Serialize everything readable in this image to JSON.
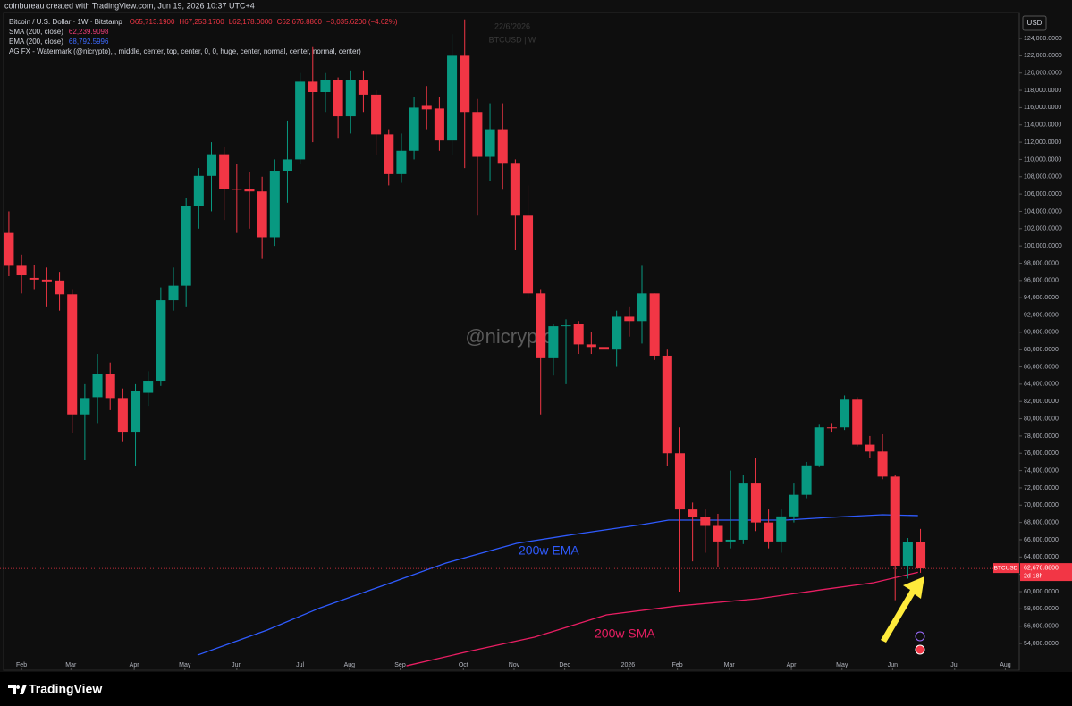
{
  "chart_data": {
    "type": "candlestick",
    "credit": "coinbureau created with TradingView.com, Jun 19, 2026 10:37 UTC+4",
    "symbol_title": "Bitcoin / U.S. Dollar · 1W · Bitstamp",
    "ohlc_header": [
      "O65,713.1900",
      "H67,253.1700",
      "L62,178.0000",
      "C62,676.8800",
      "−3,035.6200 (−4.62%)"
    ],
    "indicators": [
      {
        "name": "SMA (200, close)",
        "value": "62,239.9098",
        "color": "#f23f7a"
      },
      {
        "name": "EMA (200, close)",
        "value": "68,792.5996",
        "color": "#3d6bff"
      },
      {
        "name": "AG FX - Watermark (@nicrypto), , middle, center, top, center, 0, 0, huge, center, normal, center, normal, center)",
        "value": null,
        "color": "#d1d4dc"
      }
    ],
    "watermark": "@nicrypto",
    "top_watermark": [
      "22/6/2026",
      "BTCUSD | W"
    ],
    "currency": "USD",
    "price_label": {
      "symbol": "BTCUSD",
      "price": "62,676.8800",
      "countdown": "2d 18h"
    },
    "brand": "TradingView",
    "up_color": "#089981",
    "down_color": "#f23645",
    "open": [
      101500,
      97700,
      96300,
      96100,
      96000,
      94400,
      80500,
      82500,
      85200,
      82400,
      78500,
      83000,
      84400,
      93700,
      95400,
      104600,
      108100,
      110600,
      106600,
      106600,
      106300,
      101000,
      108700,
      110000,
      119000,
      117800,
      119200,
      115000,
      119200,
      117500,
      112900,
      108300,
      111000,
      116200,
      115900,
      112200,
      122000,
      115500,
      110300,
      113500,
      109600,
      103500,
      94500,
      87000,
      90700,
      91000,
      88600,
      88300,
      88000,
      91800,
      91300,
      94500,
      87300,
      76000,
      69500,
      68600,
      67600,
      65800,
      66000,
      72500,
      68000,
      65800,
      68700,
      71200,
      74600,
      79000,
      79000,
      82200,
      77000,
      76200,
      73300,
      63000,
      65713.19
    ],
    "high": [
      104000,
      99000,
      97800,
      97500,
      97000,
      95000,
      84000,
      87500,
      86500,
      83500,
      84000,
      85500,
      95200,
      97500,
      105500,
      109000,
      112000,
      111500,
      109500,
      108500,
      108000,
      110000,
      114500,
      120000,
      123000,
      120000,
      119500,
      120300,
      120300,
      118000,
      113500,
      113000,
      117200,
      118500,
      117200,
      124500,
      126200,
      117000,
      116500,
      116500,
      110000,
      107000,
      95000,
      91000,
      91500,
      91300,
      90000,
      89000,
      92500,
      93000,
      97700,
      94500,
      88000,
      79000,
      70300,
      69500,
      69000,
      74000,
      73500,
      75500,
      69500,
      69500,
      72500,
      75000,
      79300,
      79500,
      82700,
      82500,
      78000,
      78200,
      73500,
      66200,
      67253.17
    ],
    "low": [
      96500,
      94500,
      95000,
      93000,
      92500,
      78300,
      75200,
      79500,
      81000,
      77300,
      74500,
      81500,
      83800,
      92500,
      93000,
      102000,
      104000,
      103000,
      101500,
      102000,
      98500,
      100000,
      105000,
      109500,
      112000,
      115500,
      112500,
      113000,
      115500,
      110500,
      107000,
      107300,
      110000,
      113500,
      111000,
      110500,
      109000,
      103500,
      107500,
      106500,
      99500,
      94000,
      80500,
      85000,
      84000,
      87500,
      87500,
      86000,
      86000,
      89500,
      88700,
      86800,
      74500,
      60000,
      63500,
      64500,
      62800,
      65000,
      65500,
      67000,
      65000,
      64500,
      68000,
      70800,
      74400,
      78500,
      78700,
      76800,
      75500,
      73000,
      59000,
      61500,
      62178
    ],
    "close": [
      97700,
      96600,
      96100,
      95900,
      94400,
      80500,
      82400,
      85200,
      82400,
      78500,
      83200,
      84400,
      93700,
      95400,
      104600,
      108100,
      110600,
      106600,
      106500,
      106300,
      101000,
      108700,
      110000,
      119000,
      117800,
      119200,
      115000,
      119200,
      117500,
      112900,
      108300,
      111000,
      116000,
      115800,
      112200,
      122000,
      115500,
      110300,
      113500,
      109600,
      103500,
      94500,
      87000,
      90700,
      90800,
      88600,
      88300,
      88000,
      91800,
      91300,
      94500,
      87300,
      76000,
      69500,
      68600,
      67600,
      65800,
      66000,
      72500,
      68000,
      65800,
      68700,
      71200,
      74600,
      79000,
      78900,
      82200,
      77000,
      76200,
      73300,
      63000,
      65700,
      62676.88
    ],
    "lines": [
      {
        "name": "200w EMA",
        "color": "#2f5bff",
        "x": [
          14.9,
          20.4,
          24.6,
          29.6,
          34.5,
          40.1,
          45.1,
          50.0,
          52.1,
          55.6,
          61.3,
          64.8,
          69.0,
          71.8
        ],
        "values": [
          52650,
          55550,
          58130,
          60720,
          63300,
          65580,
          66720,
          67750,
          68270,
          68270,
          68270,
          68580,
          68890,
          68792.5996
        ]
      },
      {
        "name": "200w SMA",
        "color": "#e91e63",
        "x": [
          31.4,
          36.6,
          41.5,
          47.2,
          52.8,
          59.2,
          64.1,
          68.3,
          71.8
        ],
        "values": [
          51410,
          53170,
          54720,
          57310,
          58340,
          59170,
          60200,
          61030,
          62239.9098
        ]
      }
    ],
    "xlim": [
      -0.7,
      79.8
    ],
    "xticks": [
      {
        "value": 1.0,
        "label": "Feb"
      },
      {
        "value": 4.9,
        "label": "Mar"
      },
      {
        "value": 9.9,
        "label": "Apr"
      },
      {
        "value": 13.9,
        "label": "May"
      },
      {
        "value": 18.0,
        "label": "Jun"
      },
      {
        "value": 23.0,
        "label": "Jul"
      },
      {
        "value": 26.9,
        "label": "Aug"
      },
      {
        "value": 30.9,
        "label": "Sep"
      },
      {
        "value": 35.9,
        "label": "Oct"
      },
      {
        "value": 39.9,
        "label": "Nov"
      },
      {
        "value": 43.9,
        "label": "Dec"
      },
      {
        "value": 48.9,
        "label": "2026"
      },
      {
        "value": 52.8,
        "label": "Feb"
      },
      {
        "value": 56.9,
        "label": "Mar"
      },
      {
        "value": 61.8,
        "label": "Apr"
      },
      {
        "value": 65.8,
        "label": "May"
      },
      {
        "value": 69.8,
        "label": "Jun"
      },
      {
        "value": 74.7,
        "label": "Jul"
      },
      {
        "value": 78.7,
        "label": "Aug"
      }
    ],
    "ylim": [
      50900,
      128450
    ],
    "yticks": [
      {
        "value": 124000,
        "label": "124,000.0000"
      },
      {
        "value": 122000,
        "label": "122,000.0000"
      },
      {
        "value": 120000,
        "label": "120,000.0000"
      },
      {
        "value": 118000,
        "label": "118,000.0000"
      },
      {
        "value": 116000,
        "label": "116,000.0000"
      },
      {
        "value": 114000,
        "label": "114,000.0000"
      },
      {
        "value": 112000,
        "label": "112,000.0000"
      },
      {
        "value": 110000,
        "label": "110,000.0000"
      },
      {
        "value": 108000,
        "label": "108,000.0000"
      },
      {
        "value": 106000,
        "label": "106,000.0000"
      },
      {
        "value": 104000,
        "label": "104,000.0000"
      },
      {
        "value": 102000,
        "label": "102,000.0000"
      },
      {
        "value": 100000,
        "label": "100,000.0000"
      },
      {
        "value": 98000,
        "label": "98,000.0000"
      },
      {
        "value": 96000,
        "label": "96,000.0000"
      },
      {
        "value": 94000,
        "label": "94,000.0000"
      },
      {
        "value": 92000,
        "label": "92,000.0000"
      },
      {
        "value": 90000,
        "label": "90,000.0000"
      },
      {
        "value": 88000,
        "label": "88,000.0000"
      },
      {
        "value": 86000,
        "label": "86,000.0000"
      },
      {
        "value": 84000,
        "label": "84,000.0000"
      },
      {
        "value": 82000,
        "label": "82,000.0000"
      },
      {
        "value": 80000,
        "label": "80,000.0000"
      },
      {
        "value": 78000,
        "label": "78,000.0000"
      },
      {
        "value": 76000,
        "label": "76,000.0000"
      },
      {
        "value": 74000,
        "label": "74,000.0000"
      },
      {
        "value": 72000,
        "label": "72,000.0000"
      },
      {
        "value": 70000,
        "label": "70,000.0000"
      },
      {
        "value": 68000,
        "label": "68,000.0000"
      },
      {
        "value": 66000,
        "label": "66,000.0000"
      },
      {
        "value": 64000,
        "label": "64,000.0000"
      },
      {
        "value": 62000,
        "label": "62,000.0000"
      },
      {
        "value": 60000,
        "label": "60,000.0000"
      },
      {
        "value": 58000,
        "label": "58,000.0000"
      },
      {
        "value": 56000,
        "label": "56,000.0000"
      },
      {
        "value": 54000,
        "label": "54,000.0000"
      }
    ],
    "grid": false
  }
}
